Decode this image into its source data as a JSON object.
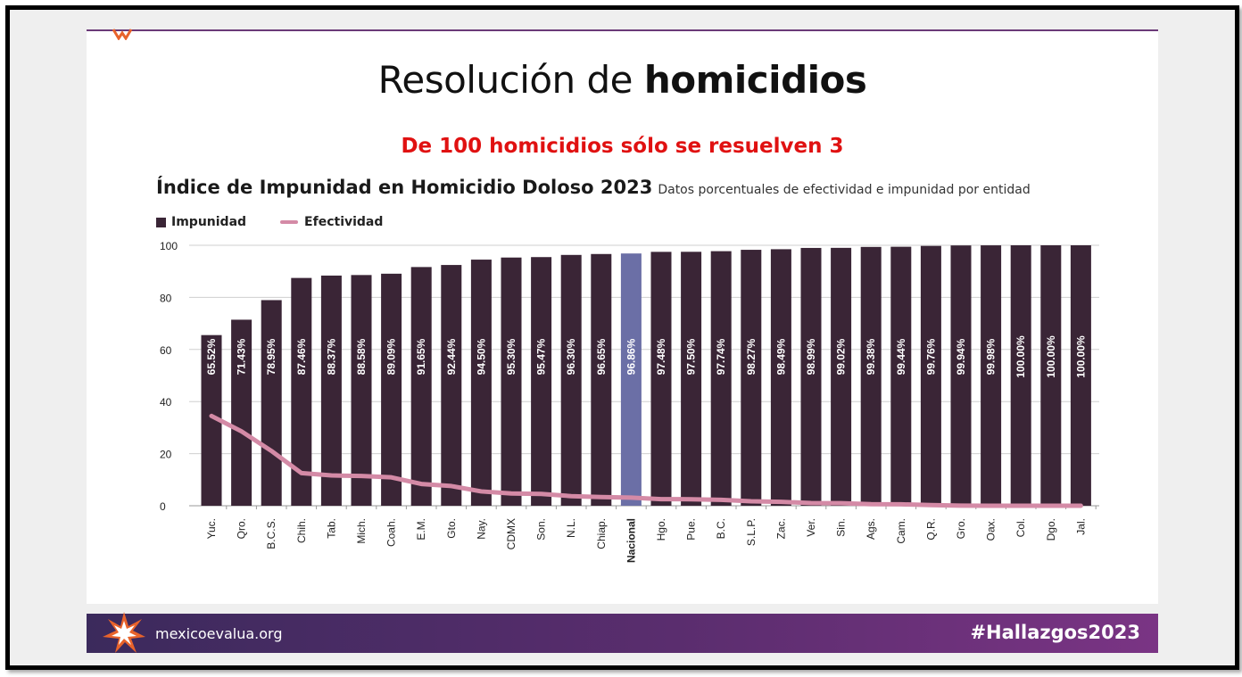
{
  "slide": {
    "title_regular": "Resolución de ",
    "title_bold": "homicidios",
    "subtitle": "De 100 homicidios sólo se resuelven 3",
    "chart_title": "Índice de Impunidad en Homicidio Doloso 2023",
    "chart_desc": "Datos porcentuales de efectividad e impunidad por entidad",
    "legend_impunidad": "Impunidad",
    "legend_efectividad": "Efectividad"
  },
  "footer": {
    "site": "mexicoevalua.org",
    "hashtag": "#Hallazgos2023"
  },
  "colors": {
    "bar": "#3a2536",
    "bar_highlight": "#6b6fa6",
    "line": "#d48aa6",
    "subtitle": "#e01111",
    "footer_start": "#3b2a5c",
    "footer_end": "#7a3484"
  },
  "chart_data": {
    "type": "bar",
    "categories": [
      "Yuc.",
      "Qro.",
      "B.C.S.",
      "Chih.",
      "Tab.",
      "Mich.",
      "Coah.",
      "E.M.",
      "Gto.",
      "Nay.",
      "CDMX",
      "Son.",
      "N.L.",
      "Chiap.",
      "Nacional",
      "Hgo.",
      "Pue.",
      "B.C.",
      "S.L.P.",
      "Zac.",
      "Ver.",
      "Sin.",
      "Ags.",
      "Cam.",
      "Q.R.",
      "Gro.",
      "Oax.",
      "Col.",
      "Dgo.",
      "Jal."
    ],
    "highlight_category": "Nacional",
    "series": [
      {
        "name": "Impunidad",
        "type": "bar",
        "values": [
          65.52,
          71.43,
          78.95,
          87.46,
          88.37,
          88.58,
          89.09,
          91.65,
          92.44,
          94.5,
          95.3,
          95.47,
          96.3,
          96.65,
          96.86,
          97.48,
          97.5,
          97.74,
          98.27,
          98.49,
          98.99,
          99.02,
          99.38,
          99.44,
          99.76,
          99.94,
          99.98,
          100.0,
          100.0,
          100.0
        ],
        "labels": [
          "65.52%",
          "71.43%",
          "78.95%",
          "87.46%",
          "88.37%",
          "88.58%",
          "89.09%",
          "91.65%",
          "92.44%",
          "94.50%",
          "95.30%",
          "95.47%",
          "96.30%",
          "96.65%",
          "96.86%",
          "97.48%",
          "97.50%",
          "97.74%",
          "98.27%",
          "98.49%",
          "98.99%",
          "99.02%",
          "99.38%",
          "99.44%",
          "99.76%",
          "99.94%",
          "99.98%",
          "100.00%",
          "100.00%",
          "100.00%"
        ]
      },
      {
        "name": "Efectividad",
        "type": "line",
        "values": [
          34.48,
          28.57,
          21.05,
          12.54,
          11.63,
          11.42,
          10.91,
          8.35,
          7.56,
          5.5,
          4.7,
          4.53,
          3.7,
          3.35,
          3.14,
          2.52,
          2.5,
          2.26,
          1.73,
          1.51,
          1.01,
          0.98,
          0.62,
          0.56,
          0.24,
          0.06,
          0.02,
          0.0,
          0.0,
          0.0
        ]
      }
    ],
    "yticks": [
      0,
      20,
      40,
      60,
      80,
      100
    ],
    "ylim": [
      0,
      100
    ],
    "grid": true
  }
}
